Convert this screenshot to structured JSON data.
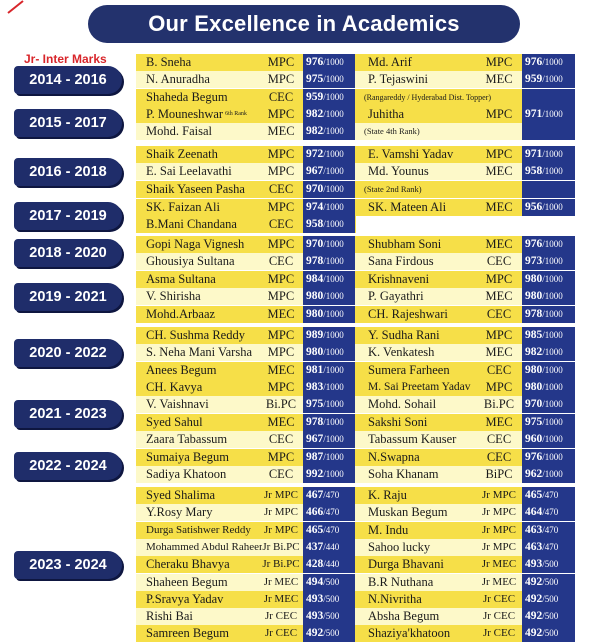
{
  "header": {
    "title": "Our Excellence in Academics",
    "subtitle": "Jr- Inter Marks"
  },
  "groups": [
    {
      "year": "2014 - 2016",
      "rows": [
        {
          "n1": "B. Sneha",
          "c1": "MPC",
          "m1": "976",
          "d1": "/1000",
          "n2": "Md. Arif",
          "c2": "MPC",
          "m2": "976",
          "d2": "/1000"
        },
        {
          "n1": "N. Anuradha",
          "c1": "MPC",
          "m1": "975",
          "d1": "/1000",
          "n2": "P. Tejaswini",
          "c2": "MEC",
          "m2": "959",
          "d2": "/1000"
        },
        {
          "n1": "Shaheda Begum",
          "c1": "CEC",
          "m1": "959",
          "d1": "/1000",
          "n2": "(Rangareddy / Hyderabad Dist. Topper)",
          "c2": "",
          "m2": "",
          "d2": ""
        }
      ]
    },
    {
      "year": "2015 - 2017",
      "rows": [
        {
          "n1": "P. Mouneshwar",
          "sup": "6th Rank",
          "c1": "MPC",
          "m1": "982",
          "d1": "/1000",
          "n2": "Juhitha",
          "c2": "MPC",
          "m2": "971",
          "d2": "/1000"
        },
        {
          "n1": "Mohd. Faisal",
          "c1": "MEC",
          "m1": "982",
          "d1": "/1000",
          "n2": "(State 4th Rank)",
          "c2": "",
          "m2": "",
          "d2": ""
        }
      ]
    },
    {
      "year": "2016 - 2018",
      "rows": [
        {
          "n1": "Shaik Zeenath",
          "c1": "MPC",
          "m1": "972",
          "d1": "/1000",
          "n2": "E. Vamshi Yadav",
          "c2": "MPC",
          "m2": "971",
          "d2": "/1000"
        },
        {
          "n1": "E. Sai Leelavathi",
          "c1": "MPC",
          "m1": "967",
          "d1": "/1000",
          "n2": "Md. Younus",
          "c2": "MEC",
          "m2": "958",
          "d2": "/1000"
        },
        {
          "n1": "Shaik Yaseen Pasha",
          "c1": "CEC",
          "m1": "970",
          "d1": "/1000",
          "n2": "(State 2nd Rank)",
          "c2": "",
          "m2": "",
          "d2": ""
        }
      ]
    },
    {
      "year": "2017 - 2019",
      "rows": [
        {
          "n1": "SK. Faizan Ali",
          "c1": "MPC",
          "m1": "974",
          "d1": "/1000",
          "n2": "SK. Mateen Ali",
          "c2": "MEC",
          "m2": "956",
          "d2": "/1000"
        },
        {
          "n1": "B.Mani Chandana",
          "c1": "CEC",
          "m1": "958",
          "d1": "/1000",
          "n2": "",
          "c2": "",
          "m2": "",
          "d2": ""
        }
      ]
    },
    {
      "year": "2018 - 2020",
      "rows": [
        {
          "n1": "Gopi Naga Vignesh",
          "c1": "MPC",
          "m1": "970",
          "d1": "/1000",
          "n2": "Shubham Soni",
          "c2": "MEC",
          "m2": "976",
          "d2": "/1000"
        },
        {
          "n1": "Ghousiya Sultana",
          "c1": "CEC",
          "m1": "978",
          "d1": "/1000",
          "n2": "Sana Firdous",
          "c2": "CEC",
          "m2": "973",
          "d2": "/1000"
        }
      ]
    },
    {
      "year": "2019 - 2021",
      "rows": [
        {
          "n1": "Asma Sultana",
          "c1": "MPC",
          "m1": "984",
          "d1": "/1000",
          "n2": "Krishnaveni",
          "c2": "MPC",
          "m2": "980",
          "d2": "/1000"
        },
        {
          "n1": "V. Shirisha",
          "c1": "MPC",
          "m1": "980",
          "d1": "/1000",
          "n2": "P. Gayathri",
          "c2": "MEC",
          "m2": "980",
          "d2": "/1000"
        },
        {
          "n1": "Mohd.Arbaaz",
          "c1": "MEC",
          "m1": "980",
          "d1": "/1000",
          "n2": "CH. Rajeshwari",
          "c2": "CEC",
          "m2": "978",
          "d2": "/1000"
        }
      ]
    },
    {
      "year": "2020 - 2022",
      "rows": [
        {
          "n1": "CH. Sushma Reddy",
          "c1": "MPC",
          "m1": "989",
          "d1": "/1000",
          "n2": "Y. Sudha Rani",
          "c2": "MPC",
          "m2": "985",
          "d2": "/1000"
        },
        {
          "n1": "S. Neha Mani Varsha",
          "c1": "MPC",
          "m1": "980",
          "d1": "/1000",
          "n2": "K. Venkatesh",
          "c2": "MEC",
          "m2": "982",
          "d2": "/1000"
        },
        {
          "n1": "Anees Begum",
          "c1": "MEC",
          "m1": "981",
          "d1": "/1000",
          "n2": "Sumera Farheen",
          "c2": "CEC",
          "m2": "980",
          "d2": "/1000"
        }
      ]
    },
    {
      "year": "2021 - 2023",
      "rows": [
        {
          "n1": "CH. Kavya",
          "c1": "MPC",
          "m1": "983",
          "d1": "/1000",
          "n2": "M. Sai Preetam Yadav",
          "c2": "MPC",
          "m2": "980",
          "d2": "/1000"
        },
        {
          "n1": "V. Vaishnavi",
          "c1": "Bi.PC",
          "m1": "975",
          "d1": "/1000",
          "n2": "Mohd. Sohail",
          "c2": "Bi.PC",
          "m2": "970",
          "d2": "/1000"
        },
        {
          "n1": "Syed Sahul",
          "c1": "MEC",
          "m1": "978",
          "d1": "/1000",
          "n2": "Sakshi Soni",
          "c2": "MEC",
          "m2": "975",
          "d2": "/1000"
        },
        {
          "n1": "Zaara Tabassum",
          "c1": "CEC",
          "m1": "967",
          "d1": "/1000",
          "n2": "Tabassum Kauser",
          "c2": "CEC",
          "m2": "960",
          "d2": "/1000"
        }
      ]
    },
    {
      "year": "2022 - 2024",
      "rows": [
        {
          "n1": "Sumaiya Begum",
          "c1": "MPC",
          "m1": "987",
          "d1": "/1000",
          "n2": "N.Swapna",
          "c2": "CEC",
          "m2": "976",
          "d2": "/1000"
        },
        {
          "n1": "Sadiya Khatoon",
          "c1": "CEC",
          "m1": "992",
          "d1": "/1000",
          "n2": "Soha Khanam",
          "c2": "BiPC",
          "m2": "962",
          "d2": "/1000"
        }
      ]
    },
    {
      "year": "2023 - 2024",
      "rows": [
        {
          "n1": "Syed Shalima",
          "c1": "Jr MPC",
          "m1": "467",
          "d1": "/470",
          "n2": "K. Raju",
          "c2": "Jr MPC",
          "m2": "465",
          "d2": "/470"
        },
        {
          "n1": "Y.Rosy Mary",
          "c1": "Jr MPC",
          "m1": "466",
          "d1": "/470",
          "n2": "Muskan Begum",
          "c2": "Jr MPC",
          "m2": "464",
          "d2": "/470"
        },
        {
          "n1": "Durga Satishwer Reddy",
          "c1": "Jr MPC",
          "m1": "465",
          "d1": "/470",
          "n2": "M. Indu",
          "c2": "Jr MPC",
          "m2": "463",
          "d2": "/470"
        },
        {
          "n1": "Mohammed Abdul Raheem",
          "c1": "Jr Bi.PC",
          "m1": "437",
          "d1": "/440",
          "n2": "Sahoo lucky",
          "c2": "Jr MPC",
          "m2": "463",
          "d2": "/470"
        },
        {
          "n1": "Cheraku Bhavya",
          "c1": "Jr Bi.PC",
          "m1": "428",
          "d1": "/440",
          "n2": "Durga Bhavani",
          "c2": "Jr MEC",
          "m2": "493",
          "d2": "/500"
        },
        {
          "n1": "Shaheen Begum",
          "c1": "Jr MEC",
          "m1": "494",
          "d1": "/500",
          "n2": "B.R Nuthana",
          "c2": "Jr MEC",
          "m2": "492",
          "d2": "/500"
        },
        {
          "n1": "P.Sravya Yadav",
          "c1": "Jr MEC",
          "m1": "493",
          "d1": "/500",
          "n2": "N.Nivritha",
          "c2": "Jr CEC",
          "m2": "492",
          "d2": "/500"
        },
        {
          "n1": "Rishi Bai",
          "c1": "Jr CEC",
          "m1": "493",
          "d1": "/500",
          "n2": "Absha Begum",
          "c2": "Jr CEC",
          "m2": "492",
          "d2": "/500"
        },
        {
          "n1": "Samreen Begum",
          "c1": "Jr CEC",
          "m1": "492",
          "d1": "/500",
          "n2": "Shaziya'khatoon",
          "c2": "Jr CEC",
          "m2": "492",
          "d2": "/500"
        }
      ]
    }
  ]
}
